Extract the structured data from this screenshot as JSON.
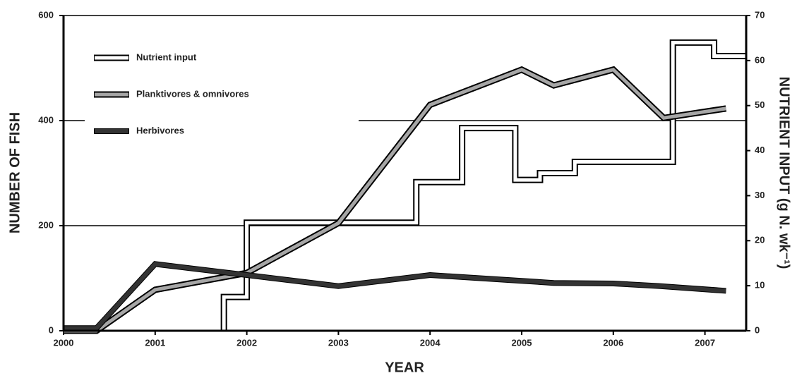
{
  "chart_data": {
    "type": "line",
    "xlabel": "YEAR",
    "ylabel": "NUMBER OF FISH",
    "y2label": "NUTRIENT INPUT (g N. wk⁻¹)",
    "xlim": [
      2000,
      2007.45
    ],
    "xticks": [
      2000,
      2001,
      2002,
      2003,
      2004,
      2005,
      2006,
      2007
    ],
    "ylim": [
      0,
      600
    ],
    "yticks": [
      0,
      200,
      400,
      600
    ],
    "y2lim": [
      0,
      70
    ],
    "y2ticks": [
      0,
      10,
      20,
      30,
      40,
      50,
      60,
      70
    ],
    "grid": true,
    "legend": "upper left",
    "series": [
      {
        "name": "Nutrient input",
        "color": "#ffffff",
        "axis": "y2",
        "x": [
          2001.75,
          2001.75,
          2002,
          2002,
          2003.85,
          2003.85,
          2004.35,
          2004.35,
          2004.93,
          2004.93,
          2005.2,
          2005.2,
          2005.58,
          2005.58,
          2006.65,
          2006.65,
          2007.1,
          2007.1,
          2007.45
        ],
        "values": [
          0,
          7.5,
          7.5,
          24,
          24,
          33,
          33,
          45,
          45,
          33.5,
          33.5,
          35,
          35,
          37.5,
          37.5,
          64,
          64,
          61,
          61
        ]
      },
      {
        "name": "Planktivores & omnivores",
        "color": "#a6a6a6",
        "x": [
          2000,
          2000.36,
          2001,
          2002,
          2003,
          2004,
          2005,
          2005.35,
          2006,
          2006.55,
          2007.23
        ],
        "values": [
          0,
          0,
          78,
          110,
          205,
          430,
          497,
          467,
          497,
          405,
          423
        ]
      },
      {
        "name": "Herbivores",
        "color": "#333333",
        "x": [
          2000,
          2000.36,
          2001,
          2002,
          2003,
          2004,
          2005,
          2005.35,
          2006,
          2006.5,
          2007.23
        ],
        "values": [
          5,
          5,
          127,
          106,
          85,
          106,
          95,
          91,
          90,
          85,
          76
        ]
      }
    ]
  }
}
